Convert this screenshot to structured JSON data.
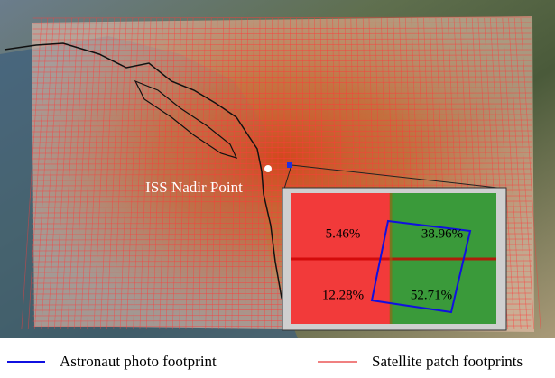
{
  "map": {
    "nadir_label": "ISS Nadir Point",
    "inset": {
      "quadrants": [
        "5.46%",
        "38.96%",
        "12.28%",
        "52.71%"
      ]
    },
    "legend": {
      "items": [
        "Astronaut photo footprint",
        "Satellite patch footprints"
      ]
    }
  }
}
